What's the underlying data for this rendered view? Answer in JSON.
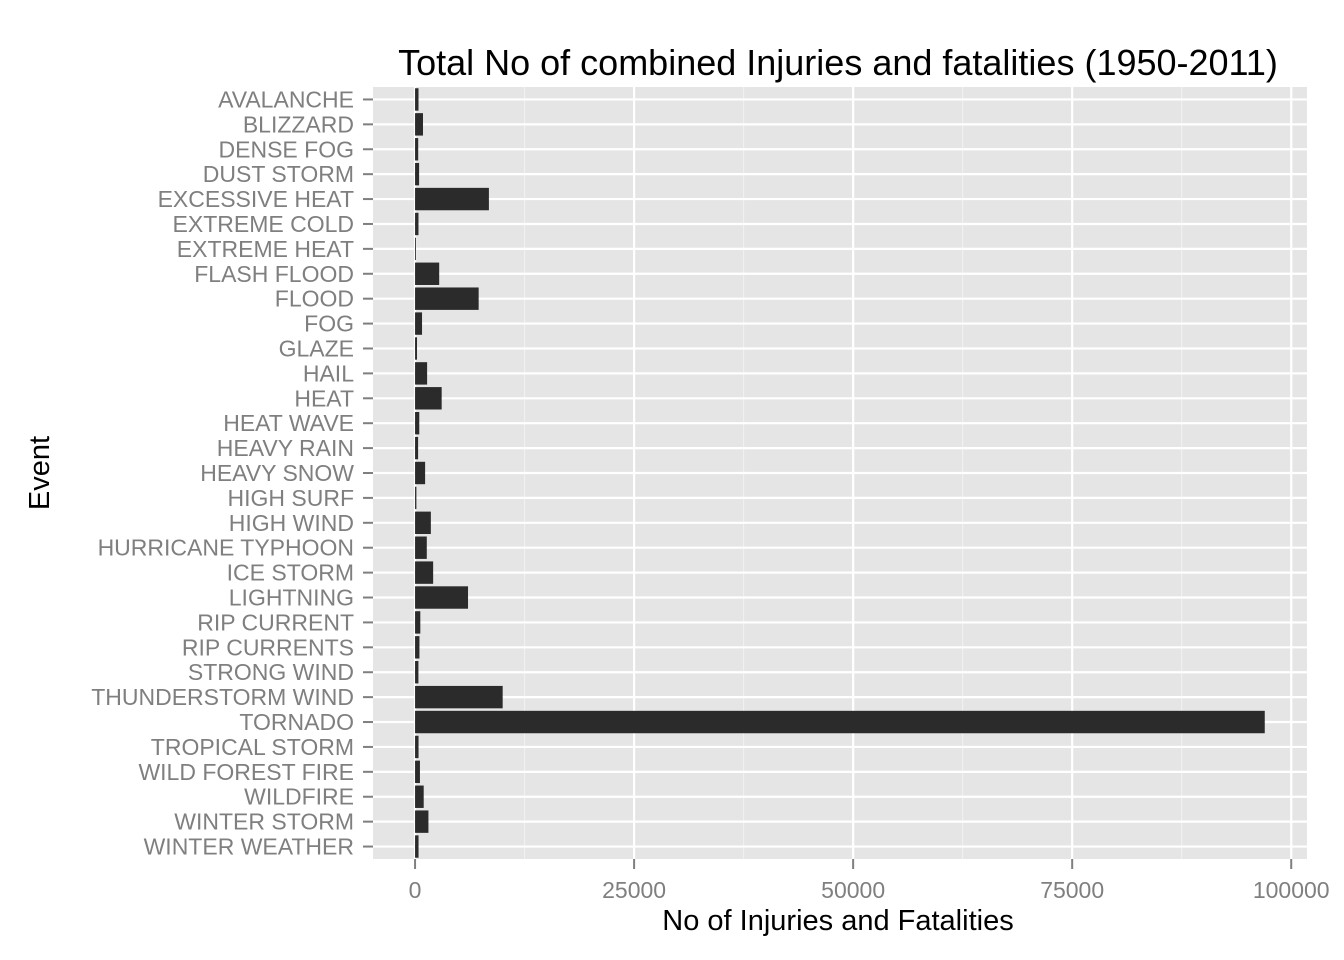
{
  "chart_data": {
    "type": "bar",
    "orientation": "horizontal",
    "title": "Total No of combined Injuries and fatalities (1950-2011)",
    "xlabel": "No of Injuries and Fatalities",
    "ylabel": "Event",
    "xlim": [
      -4800,
      101800
    ],
    "x_ticks": [
      0,
      25000,
      50000,
      75000,
      100000
    ],
    "x_tick_labels": [
      "0",
      "25000",
      "50000",
      "75000",
      "100000"
    ],
    "grid": true,
    "legend": "none",
    "colors": {
      "panel": "#e5e5e5",
      "grid_major": "#ffffff",
      "grid_minor": "#f2f2f2",
      "bar": "#2b2b2b",
      "tick_label": "#7f7f7f",
      "text": "#000000"
    },
    "categories": [
      "AVALANCHE",
      "BLIZZARD",
      "DENSE FOG",
      "DUST STORM",
      "EXCESSIVE HEAT",
      "EXTREME COLD",
      "EXTREME HEAT",
      "FLASH FLOOD",
      "FLOOD",
      "FOG",
      "GLAZE",
      "HAIL",
      "HEAT",
      "HEAT WAVE",
      "HEAVY RAIN",
      "HEAVY SNOW",
      "HIGH SURF",
      "HIGH WIND",
      "HURRICANE TYPHOON",
      "ICE STORM",
      "LIGHTNING",
      "RIP CURRENT",
      "RIP CURRENTS",
      "STRONG WIND",
      "THUNDERSTORM WIND",
      "TORNADO",
      "TROPICAL STORM",
      "WILD FOREST FIRE",
      "WILDFIRE",
      "WINTER STORM",
      "WINTER WEATHER"
    ],
    "values": [
      394,
      906,
      360,
      462,
      8428,
      391,
      99,
      2755,
      7259,
      796,
      223,
      1376,
      3037,
      481,
      349,
      1148,
      152,
      1803,
      1339,
      2064,
      6046,
      600,
      501,
      383,
      10000,
      96979,
      398,
      557,
      986,
      1527,
      398
    ]
  }
}
